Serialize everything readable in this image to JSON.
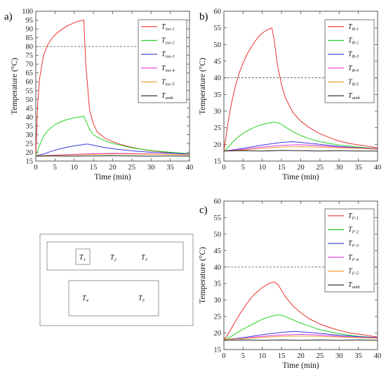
{
  "chart_data": [
    {
      "panel_label": "a)",
      "type": "line",
      "xlabel": "Time (min)",
      "ylabel": "Temperature (°C)",
      "xlim": [
        0,
        40
      ],
      "ylim": [
        15,
        100
      ],
      "xticks": [
        0,
        5,
        10,
        15,
        20,
        25,
        30,
        35,
        40
      ],
      "yticks": [
        15,
        20,
        25,
        30,
        35,
        40,
        45,
        50,
        55,
        60,
        65,
        70,
        75,
        80,
        85,
        90,
        95,
        100
      ],
      "reference_line": 80,
      "legend_position": "top-right",
      "series": [
        {
          "name": "T",
          "sub": "iso-1",
          "color": "#e8322f",
          "x": [
            0,
            0.5,
            1,
            2,
            3,
            4,
            5,
            6,
            7,
            8,
            9,
            10,
            11,
            12,
            12.5,
            13,
            14,
            15,
            16,
            18,
            20,
            22,
            25,
            28,
            30,
            33,
            36,
            40
          ],
          "y": [
            18,
            48,
            62,
            75,
            80.5,
            84,
            86.5,
            88.5,
            90,
            91.5,
            92.5,
            93.5,
            94.2,
            94.8,
            95,
            70,
            44,
            36,
            31.5,
            28,
            26,
            24.5,
            22.8,
            21.5,
            20.8,
            20.2,
            19.6,
            19
          ]
        },
        {
          "name": "T",
          "sub": "iso-2",
          "color": "#22d322",
          "x": [
            0,
            1,
            2,
            3,
            4,
            5,
            6,
            8,
            10,
            12,
            12.5,
            13,
            14,
            15,
            16,
            18,
            20,
            25,
            30,
            35,
            40
          ],
          "y": [
            18,
            24,
            29,
            32,
            34,
            35.5,
            36.8,
            38.5,
            39.5,
            40.2,
            40.5,
            38,
            33,
            30,
            28.5,
            26.5,
            25,
            22.5,
            21,
            20,
            19.2
          ]
        },
        {
          "name": "T",
          "sub": "iso-3",
          "color": "#3a3ae0",
          "x": [
            0,
            2,
            4,
            6,
            8,
            10,
            12,
            13,
            14,
            16,
            18,
            20,
            25,
            30,
            35,
            40
          ],
          "y": [
            18,
            19,
            20.5,
            21.8,
            22.8,
            23.6,
            24.2,
            24.6,
            24.5,
            23.5,
            22.7,
            22,
            20.8,
            20,
            19.5,
            19
          ]
        },
        {
          "name": "T",
          "sub": "iso-4",
          "color": "#e035e0",
          "x": [
            0,
            5,
            10,
            15,
            20,
            25,
            30,
            35,
            40
          ],
          "y": [
            18,
            18.4,
            18.8,
            19.2,
            19.4,
            19.3,
            19.1,
            18.9,
            18.7
          ]
        },
        {
          "name": "T",
          "sub": "iso-5",
          "color": "#f0a030",
          "x": [
            0,
            5,
            10,
            15,
            20,
            25,
            30,
            35,
            40
          ],
          "y": [
            18,
            18.2,
            18.5,
            18.8,
            19,
            19,
            18.9,
            18.8,
            18.6
          ]
        },
        {
          "name": "T",
          "sub": "amb",
          "color": "#202020",
          "x": [
            0,
            5,
            10,
            15,
            20,
            25,
            30,
            35,
            40
          ],
          "y": [
            17.8,
            17.9,
            17.8,
            17.9,
            18,
            17.9,
            17.8,
            17.9,
            17.8
          ]
        }
      ]
    },
    {
      "panel_label": "b)",
      "type": "line",
      "xlabel": "Time (min)",
      "ylabel": "Temperature (°C)",
      "xlim": [
        0,
        40
      ],
      "ylim": [
        15,
        60
      ],
      "xticks": [
        0,
        5,
        10,
        15,
        20,
        25,
        30,
        35,
        40
      ],
      "yticks": [
        15,
        20,
        25,
        30,
        35,
        40,
        45,
        50,
        55,
        60
      ],
      "reference_line": 40,
      "legend_position": "top-right",
      "series": [
        {
          "name": "T",
          "sub": "B-1",
          "color": "#e8322f",
          "x": [
            0,
            1,
            2,
            3,
            4,
            5,
            6,
            7,
            8,
            9,
            10,
            11,
            12,
            12.5,
            13,
            14,
            15,
            16,
            18,
            20,
            22,
            25,
            28,
            30,
            33,
            36,
            40
          ],
          "y": [
            18,
            26,
            32.5,
            37.5,
            41.5,
            44.5,
            47,
            49,
            50.8,
            52.3,
            53.5,
            54.2,
            54.8,
            55,
            52,
            43.5,
            38,
            34,
            29.5,
            27,
            25.2,
            23.2,
            21.8,
            21,
            20.2,
            19.7,
            19
          ]
        },
        {
          "name": "T",
          "sub": "B-2",
          "color": "#22d322",
          "x": [
            0,
            1,
            2,
            3,
            4,
            5,
            6,
            8,
            10,
            12,
            13,
            14,
            15,
            16,
            18,
            20,
            22,
            25,
            30,
            35,
            40
          ],
          "y": [
            18,
            19,
            20.3,
            21.5,
            22.5,
            23.3,
            24,
            25.2,
            26,
            26.5,
            26.7,
            26.5,
            26,
            25.2,
            23.8,
            22.7,
            21.8,
            20.8,
            19.8,
            19.2,
            18.7
          ]
        },
        {
          "name": "T",
          "sub": "B-3",
          "color": "#3a3ae0",
          "x": [
            0,
            5,
            10,
            15,
            18,
            20,
            25,
            30,
            35,
            40
          ],
          "y": [
            18,
            18.8,
            19.8,
            20.6,
            20.8,
            20.6,
            20,
            19.4,
            19,
            18.7
          ]
        },
        {
          "name": "T",
          "sub": "B-4",
          "color": "#e035e0",
          "x": [
            0,
            5,
            10,
            15,
            20,
            25,
            30,
            35,
            40
          ],
          "y": [
            18,
            18.5,
            19.2,
            19.7,
            19.9,
            19.6,
            19.2,
            18.9,
            18.6
          ]
        },
        {
          "name": "T",
          "sub": "B-5",
          "color": "#f0a030",
          "x": [
            0,
            5,
            10,
            15,
            20,
            25,
            30,
            35,
            40
          ],
          "y": [
            18,
            18.3,
            18.8,
            19.2,
            19.3,
            19.2,
            19,
            18.8,
            18.5
          ]
        },
        {
          "name": "T",
          "sub": "amb",
          "color": "#202020",
          "x": [
            0,
            5,
            10,
            15,
            20,
            25,
            30,
            35,
            40
          ],
          "y": [
            18,
            18.1,
            18,
            18.2,
            18.1,
            18,
            18.1,
            18,
            18
          ]
        }
      ]
    },
    {
      "panel_label": "c)",
      "type": "line",
      "xlabel": "Time (min)",
      "ylabel": "Temperature (°C)",
      "xlim": [
        0,
        40
      ],
      "ylim": [
        15,
        60
      ],
      "xticks": [
        0,
        5,
        10,
        15,
        20,
        25,
        30,
        35,
        40
      ],
      "yticks": [
        15,
        20,
        25,
        30,
        35,
        40,
        45,
        50,
        55,
        60
      ],
      "reference_line": 40,
      "legend_position": "top-right",
      "series": [
        {
          "name": "T",
          "sub": "F-1",
          "color": "#e8322f",
          "x": [
            0,
            1,
            2,
            3,
            4,
            5,
            6,
            7,
            8,
            9,
            10,
            11,
            12,
            13,
            14,
            15,
            16,
            18,
            20,
            22,
            25,
            28,
            30,
            33,
            36,
            40
          ],
          "y": [
            18,
            19.5,
            21.5,
            23.5,
            25.5,
            27.3,
            29,
            30.5,
            31.8,
            32.8,
            33.8,
            34.5,
            35.2,
            35.5,
            34.8,
            33,
            31,
            28.2,
            26.2,
            24.5,
            22.7,
            21.5,
            20.8,
            20,
            19.5,
            18.8
          ]
        },
        {
          "name": "T",
          "sub": "F-2",
          "color": "#22d322",
          "x": [
            0,
            2,
            4,
            6,
            8,
            10,
            12,
            14,
            15,
            16,
            18,
            20,
            22,
            25,
            30,
            35,
            40
          ],
          "y": [
            18,
            19,
            20.5,
            21.8,
            23,
            24.2,
            25,
            25.5,
            25.4,
            25,
            24,
            23,
            22.2,
            21,
            19.8,
            19,
            18.6
          ]
        },
        {
          "name": "T",
          "sub": "F-3",
          "color": "#3a3ae0",
          "x": [
            0,
            5,
            10,
            15,
            18,
            20,
            25,
            30,
            35,
            40
          ],
          "y": [
            18,
            18.6,
            19.5,
            20.2,
            20.5,
            20.4,
            19.9,
            19.3,
            18.9,
            18.6
          ]
        },
        {
          "name": "T",
          "sub": "F-4",
          "color": "#e035e0",
          "x": [
            0,
            5,
            10,
            15,
            20,
            25,
            30,
            35,
            40
          ],
          "y": [
            18,
            18.4,
            19,
            19.4,
            19.6,
            19.4,
            19,
            18.7,
            18.5
          ]
        },
        {
          "name": "T",
          "sub": "F-5",
          "color": "#f0a030",
          "x": [
            0,
            5,
            10,
            15,
            20,
            25,
            30,
            35,
            40
          ],
          "y": [
            18,
            18.3,
            18.7,
            19,
            19.1,
            19,
            18.8,
            18.6,
            18.4
          ]
        },
        {
          "name": "T",
          "sub": "amb",
          "color": "#202020",
          "x": [
            0,
            5,
            10,
            15,
            20,
            25,
            30,
            35,
            40
          ],
          "y": [
            17.8,
            17.9,
            17.8,
            17.9,
            17.8,
            17.9,
            17.8,
            17.9,
            17.8
          ]
        }
      ]
    }
  ],
  "sensor_layout": {
    "labels": [
      {
        "main": "T",
        "sub": "1"
      },
      {
        "main": "T",
        "sub": "2"
      },
      {
        "main": "T",
        "sub": "3"
      },
      {
        "main": "T",
        "sub": "4"
      },
      {
        "main": "T",
        "sub": "5"
      }
    ]
  },
  "colors": {
    "axis": "#555555",
    "reference_line": "#555555"
  }
}
